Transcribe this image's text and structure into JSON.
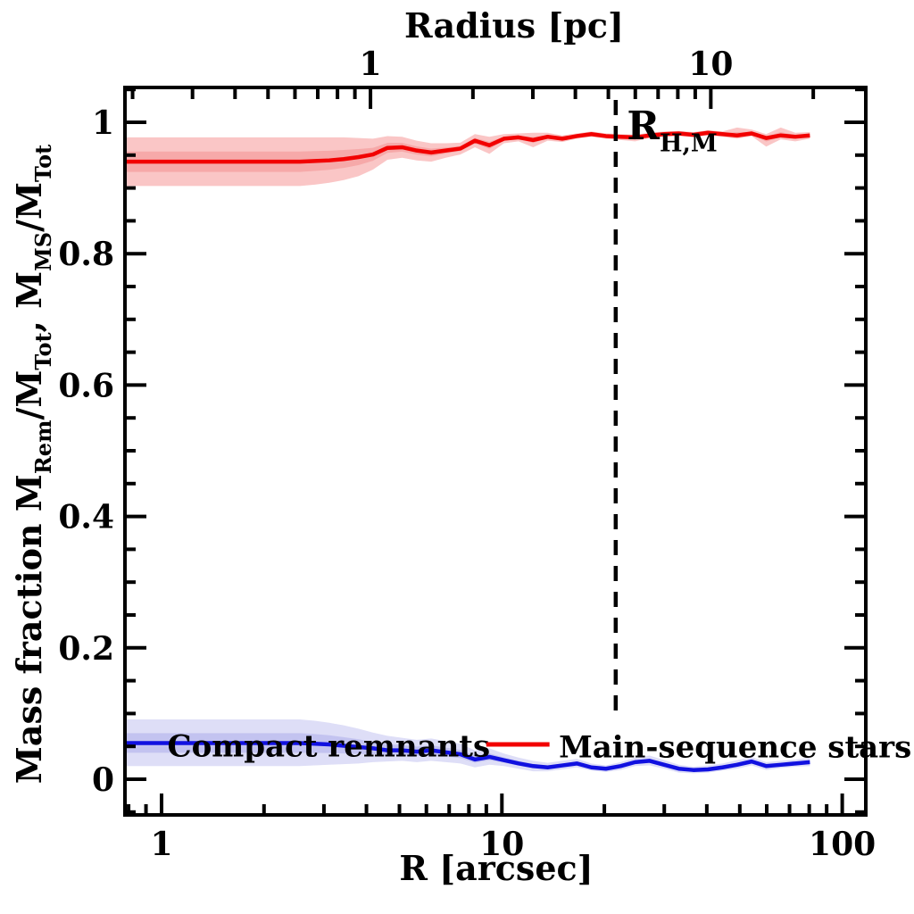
{
  "figure": {
    "background": "#ffffff",
    "frame_color": "#000000"
  },
  "chart_data": {
    "type": "line",
    "title": "",
    "axes": {
      "x_bottom": {
        "label": "R [arcsec]",
        "scale": "log",
        "min": 0.781,
        "max": 117.3,
        "majors": [
          1,
          10,
          100
        ],
        "major_labels": [
          "1",
          "10",
          "100"
        ]
      },
      "x_top": {
        "label": "Radius [pc]",
        "scale": "log",
        "arcsec_per_pc": 4.11,
        "min_pc": 0.19,
        "max_pc": 28.5,
        "majors": [
          1,
          10
        ],
        "major_labels": [
          "1",
          "10"
        ]
      },
      "y": {
        "label_parts": [
          {
            "t": "Mass fraction   "
          },
          {
            "t": "M"
          },
          {
            "t": "Rem",
            "sub": true
          },
          {
            "t": "/M"
          },
          {
            "t": "Tot",
            "sub": true
          },
          {
            "t": ",  "
          },
          {
            "t": "M"
          },
          {
            "t": "MS",
            "sub": true
          },
          {
            "t": "/M"
          },
          {
            "t": "Tot",
            "sub": true
          }
        ],
        "min": -0.054,
        "max": 1.053,
        "minor_step": 0.05,
        "majors": [
          0,
          0.2,
          0.4,
          0.6,
          0.8,
          1
        ],
        "major_labels": [
          "0",
          "0.2",
          "0.4",
          "0.6",
          "0.8",
          "1"
        ]
      }
    },
    "x_arcsec": [
      0.78,
      0.86,
      0.95,
      1.05,
      1.16,
      1.28,
      1.41,
      1.56,
      1.72,
      1.9,
      2.1,
      2.31,
      2.55,
      2.82,
      3.11,
      3.43,
      3.79,
      4.18,
      4.61,
      5.09,
      5.62,
      6.2,
      6.84,
      7.55,
      8.33,
      9.19,
      10.14,
      11.19,
      12.35,
      13.63,
      15.04,
      16.6,
      18.32,
      20.21,
      22.31,
      24.62,
      27.17,
      29.98,
      33.09,
      36.52,
      40.3,
      44.48,
      49.08,
      54.17,
      59.78,
      65.97,
      72.8,
      80.34
    ],
    "series": [
      {
        "name": "Main-sequence stars",
        "line_color": "#f20000",
        "band_color": "#fac6c6",
        "inner_band_color": "#f6a9a9",
        "values": [
          0.94,
          0.94,
          0.94,
          0.94,
          0.94,
          0.94,
          0.94,
          0.94,
          0.94,
          0.94,
          0.94,
          0.94,
          0.94,
          0.941,
          0.942,
          0.944,
          0.947,
          0.951,
          0.961,
          0.962,
          0.957,
          0.954,
          0.957,
          0.96,
          0.972,
          0.965,
          0.975,
          0.977,
          0.973,
          0.978,
          0.975,
          0.979,
          0.982,
          0.979,
          0.978,
          0.977,
          0.98,
          0.982,
          0.983,
          0.981,
          0.984,
          0.982,
          0.98,
          0.983,
          0.976,
          0.98,
          0.978,
          0.98
        ],
        "lower": [
          0.903,
          0.903,
          0.903,
          0.903,
          0.903,
          0.903,
          0.903,
          0.903,
          0.903,
          0.903,
          0.903,
          0.903,
          0.903,
          0.905,
          0.908,
          0.912,
          0.918,
          0.928,
          0.943,
          0.946,
          0.942,
          0.94,
          0.946,
          0.951,
          0.962,
          0.952,
          0.968,
          0.971,
          0.962,
          0.972,
          0.97,
          0.975,
          0.978,
          0.975,
          0.973,
          0.971,
          0.976,
          0.978,
          0.979,
          0.977,
          0.98,
          0.978,
          0.975,
          0.979,
          0.963,
          0.974,
          0.971,
          0.975
        ],
        "upper": [
          0.977,
          0.977,
          0.977,
          0.977,
          0.977,
          0.977,
          0.977,
          0.977,
          0.977,
          0.977,
          0.977,
          0.977,
          0.977,
          0.977,
          0.977,
          0.977,
          0.976,
          0.975,
          0.979,
          0.978,
          0.972,
          0.968,
          0.968,
          0.969,
          0.982,
          0.978,
          0.982,
          0.983,
          0.984,
          0.984,
          0.98,
          0.983,
          0.986,
          0.983,
          0.982,
          0.981,
          0.984,
          0.986,
          0.987,
          0.985,
          0.988,
          0.986,
          0.992,
          0.989,
          0.982,
          0.992,
          0.984,
          0.985
        ]
      },
      {
        "name": "Compact remnants",
        "line_color": "#1111e0",
        "band_color": "#dedef7",
        "inner_band_color": "#c3c3f0",
        "values": [
          0.055,
          0.055,
          0.055,
          0.055,
          0.055,
          0.055,
          0.055,
          0.055,
          0.055,
          0.055,
          0.055,
          0.055,
          0.055,
          0.054,
          0.053,
          0.051,
          0.049,
          0.047,
          0.044,
          0.044,
          0.042,
          0.044,
          0.041,
          0.038,
          0.03,
          0.034,
          0.029,
          0.024,
          0.02,
          0.018,
          0.021,
          0.024,
          0.018,
          0.016,
          0.02,
          0.026,
          0.028,
          0.022,
          0.016,
          0.014,
          0.015,
          0.018,
          0.022,
          0.027,
          0.02,
          0.022,
          0.024,
          0.026
        ],
        "lower": [
          0.02,
          0.02,
          0.02,
          0.02,
          0.02,
          0.02,
          0.02,
          0.02,
          0.02,
          0.02,
          0.02,
          0.02,
          0.02,
          0.021,
          0.022,
          0.023,
          0.024,
          0.026,
          0.027,
          0.028,
          0.026,
          0.028,
          0.026,
          0.024,
          0.018,
          0.022,
          0.02,
          0.016,
          0.012,
          0.012,
          0.015,
          0.018,
          0.013,
          0.011,
          0.014,
          0.02,
          0.021,
          0.016,
          0.01,
          0.009,
          0.01,
          0.013,
          0.016,
          0.021,
          0.014,
          0.017,
          0.019,
          0.02
        ],
        "upper": [
          0.091,
          0.091,
          0.091,
          0.091,
          0.091,
          0.091,
          0.091,
          0.091,
          0.091,
          0.091,
          0.091,
          0.091,
          0.091,
          0.089,
          0.086,
          0.082,
          0.077,
          0.071,
          0.066,
          0.063,
          0.06,
          0.062,
          0.058,
          0.054,
          0.044,
          0.047,
          0.039,
          0.033,
          0.028,
          0.025,
          0.028,
          0.031,
          0.024,
          0.021,
          0.026,
          0.033,
          0.036,
          0.029,
          0.022,
          0.019,
          0.021,
          0.024,
          0.029,
          0.034,
          0.026,
          0.028,
          0.03,
          0.033
        ]
      }
    ],
    "annotation": {
      "type": "vline",
      "R_arcsec": 21.6,
      "style": "dashed",
      "color": "#000000",
      "label_parts": [
        {
          "t": "R"
        },
        {
          "t": "H,M",
          "sub": true
        }
      ],
      "label_R": 23.3,
      "label_v": 0.974
    },
    "legend": [
      {
        "label": "Compact remnants",
        "color": "#1111e0",
        "anchor": "middle",
        "text_R": 3.1,
        "text_v": 0.052
      },
      {
        "label": "Main-sequence stars",
        "color": "#f20000",
        "anchor": "start",
        "text_R": 14.7,
        "text_v": 0.051,
        "line_R": [
          9.0,
          13.8
        ],
        "line_v": 0.053
      }
    ]
  }
}
